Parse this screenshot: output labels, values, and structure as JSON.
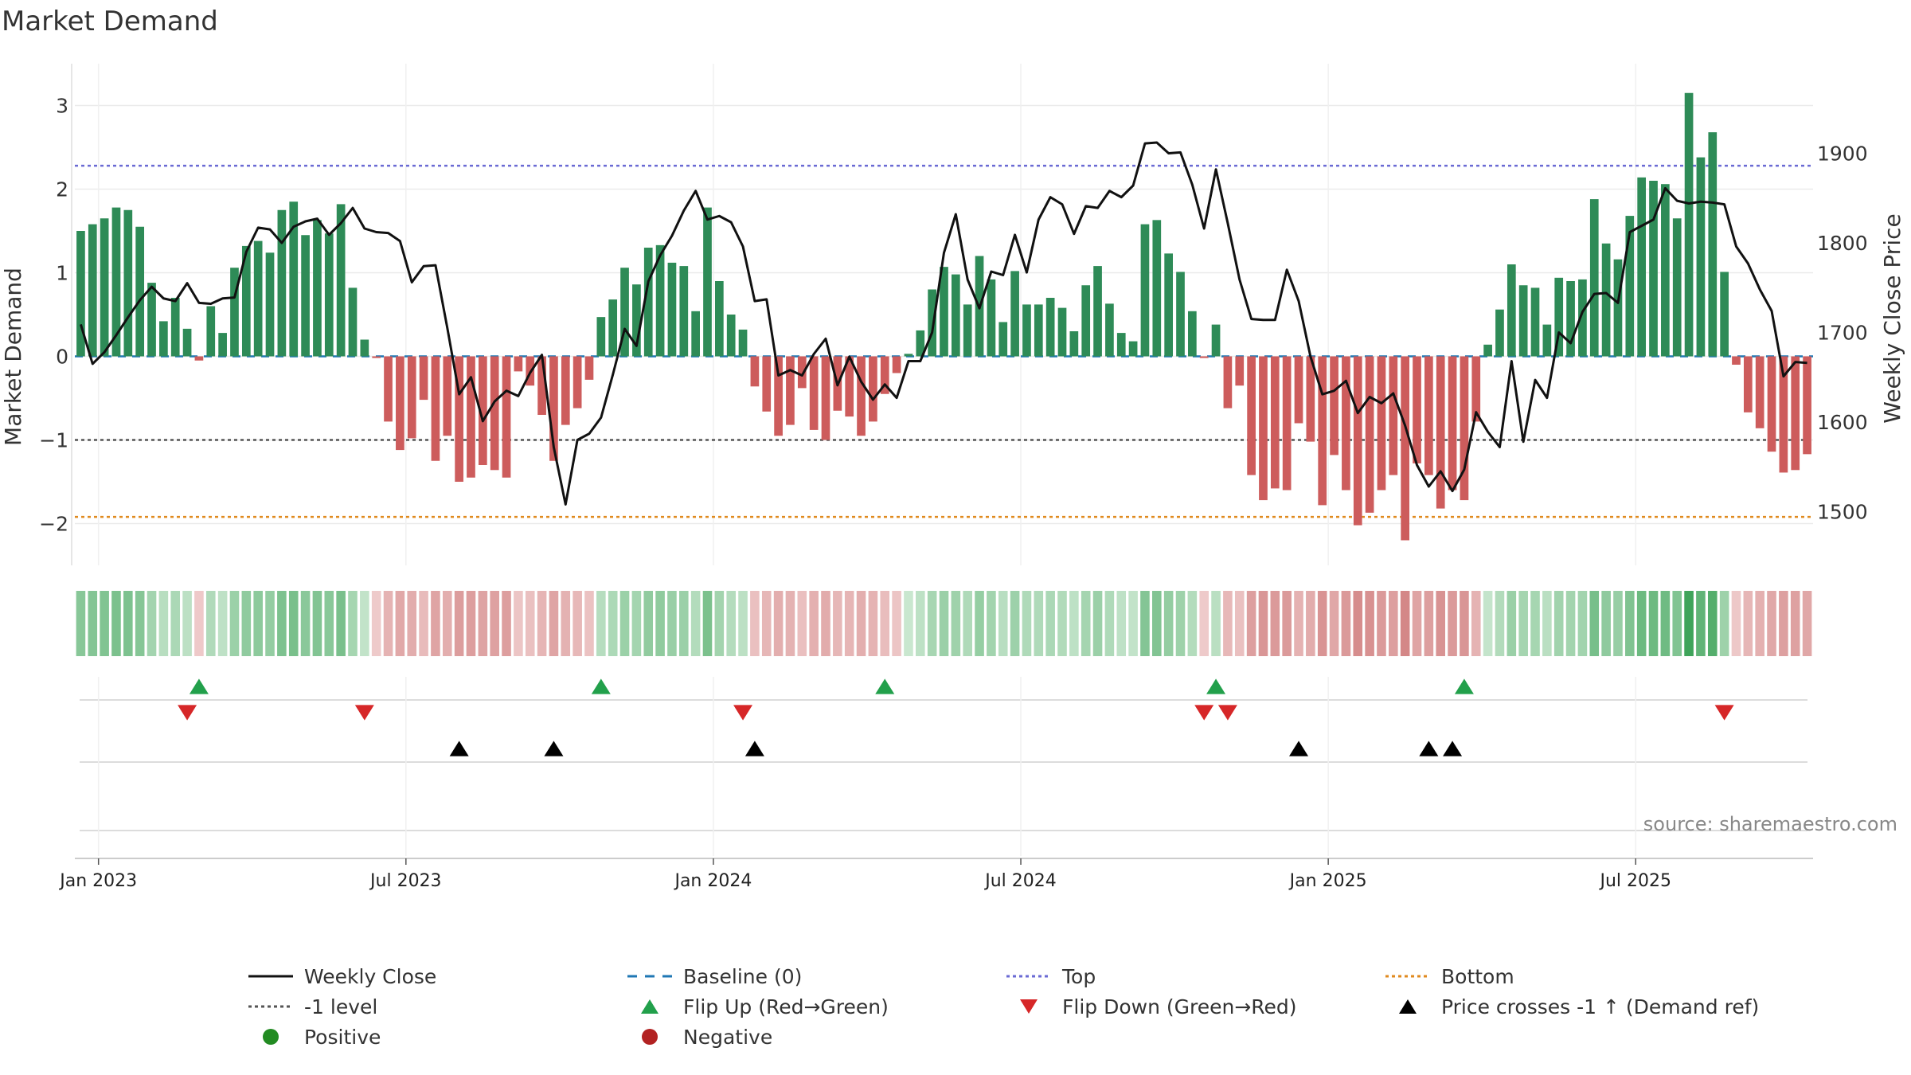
{
  "chart_data": {
    "type": "bar",
    "title": "Market Demand",
    "ylabel": "Market Demand",
    "y2label": "Weekly Close Price",
    "ylim": [
      -2.5,
      3.5
    ],
    "y2lim": [
      1440,
      2000
    ],
    "yticks": [
      -2,
      -1,
      0,
      1,
      2,
      3
    ],
    "y2ticks": [
      1500,
      1600,
      1700,
      1800,
      1900
    ],
    "xticks": [
      {
        "label": "Jan 2023",
        "index": 1.5
      },
      {
        "label": "Jul 2023",
        "index": 27.5
      },
      {
        "label": "Jan 2024",
        "index": 53.5
      },
      {
        "label": "Jul 2024",
        "index": 79.5
      },
      {
        "label": "Jan 2025",
        "index": 105.5
      },
      {
        "label": "Jul 2025",
        "index": 131.5
      }
    ],
    "reference_lines": {
      "top": 2.28,
      "bottom": -1.92,
      "minus_one": -1.0,
      "baseline": 0
    },
    "series": [
      {
        "name": "Market Demand",
        "values": [
          1.5,
          1.58,
          1.65,
          1.78,
          1.75,
          1.55,
          0.88,
          0.42,
          0.7,
          0.33,
          -0.05,
          0.6,
          0.28,
          1.06,
          1.32,
          1.38,
          1.24,
          1.75,
          1.85,
          1.45,
          1.63,
          1.47,
          1.82,
          0.82,
          0.2,
          -0.02,
          -0.78,
          -1.12,
          -0.98,
          -0.52,
          -1.25,
          -0.95,
          -1.5,
          -1.45,
          -1.3,
          -1.36,
          -1.45,
          -0.18,
          -0.35,
          -0.7,
          -1.25,
          -0.82,
          -0.62,
          -0.28,
          0.47,
          0.68,
          1.06,
          0.86,
          1.3,
          1.33,
          1.12,
          1.08,
          0.54,
          1.78,
          0.9,
          0.5,
          0.32,
          -0.36,
          -0.66,
          -0.95,
          -0.82,
          -0.38,
          -0.88,
          -1.0,
          -0.65,
          -0.72,
          -0.95,
          -0.78,
          -0.45,
          -0.2,
          0.03,
          0.31,
          0.8,
          1.07,
          0.98,
          0.62,
          1.2,
          0.92,
          0.41,
          1.02,
          0.62,
          0.62,
          0.7,
          0.58,
          0.3,
          0.85,
          1.08,
          0.63,
          0.28,
          0.18,
          1.58,
          1.63,
          1.23,
          1.01,
          0.54,
          -0.02,
          0.38,
          -0.62,
          -0.35,
          -1.42,
          -1.72,
          -1.58,
          -1.6,
          -0.8,
          -1.02,
          -1.78,
          -1.18,
          -1.6,
          -2.02,
          -1.87,
          -1.6,
          -1.42,
          -2.2,
          -1.28,
          -1.42,
          -1.82,
          -1.6,
          -1.72,
          -0.78,
          0.14,
          0.56,
          1.1,
          0.85,
          0.82,
          0.38,
          0.94,
          0.9,
          0.92,
          1.88,
          1.35,
          1.16,
          1.68,
          2.14,
          2.1,
          2.06,
          1.65,
          3.15,
          2.38,
          2.68,
          1.01,
          -0.1,
          -0.67,
          -0.86,
          -1.14,
          -1.39,
          -1.36,
          -1.17
        ]
      },
      {
        "name": "Weekly Close",
        "values": [
          1709,
          1665,
          1678,
          1697,
          1717,
          1736,
          1751,
          1738,
          1735,
          1755,
          1733,
          1732,
          1738,
          1739,
          1790,
          1817,
          1815,
          1800,
          1818,
          1824,
          1827,
          1809,
          1822,
          1839,
          1816,
          1812,
          1811,
          1802,
          1756,
          1774,
          1775,
          1705,
          1631,
          1650,
          1601,
          1623,
          1635,
          1629,
          1655,
          1675,
          1572,
          1508,
          1580,
          1587,
          1605,
          1653,
          1704,
          1685,
          1757,
          1786,
          1808,
          1836,
          1858,
          1826,
          1830,
          1823,
          1796,
          1735,
          1737,
          1652,
          1658,
          1652,
          1676,
          1693,
          1641,
          1673,
          1645,
          1625,
          1642,
          1627,
          1668,
          1668,
          1700,
          1789,
          1832,
          1759,
          1727,
          1768,
          1764,
          1809,
          1767,
          1826,
          1851,
          1843,
          1810,
          1841,
          1839,
          1858,
          1851,
          1864,
          1911,
          1912,
          1900,
          1901,
          1865,
          1816,
          1882,
          1822,
          1759,
          1715,
          1714,
          1714,
          1770,
          1735,
          1673,
          1631,
          1635,
          1646,
          1610,
          1628,
          1621,
          1632,
          1596,
          1552,
          1528,
          1545,
          1523,
          1547,
          1611,
          1589,
          1572,
          1668,
          1578,
          1647,
          1627,
          1700,
          1688,
          1723,
          1743,
          1744,
          1733,
          1812,
          1819,
          1826,
          1861,
          1847,
          1844,
          1846,
          1845,
          1843,
          1796,
          1777,
          1748,
          1724,
          1651,
          1667,
          1666
        ]
      }
    ],
    "strip_legend": {
      "positive": "Positive",
      "negative": "Negative"
    },
    "flip_up_idx": [
      10,
      44,
      68,
      96,
      117
    ],
    "flip_down_idx": [
      9,
      24,
      56,
      95,
      97,
      139
    ],
    "cross_idx": [
      32,
      40,
      57,
      103,
      114,
      116
    ],
    "source": "source: sharemaestro.com",
    "legend": [
      {
        "label": "Weekly Close",
        "kind": "line-black"
      },
      {
        "label": "Baseline (0)",
        "kind": "dash-blue"
      },
      {
        "label": "Top",
        "kind": "dot-purple"
      },
      {
        "label": "Bottom",
        "kind": "dot-orange"
      },
      {
        "label": "-1 level",
        "kind": "dot-gray"
      },
      {
        "label": "Flip Up (Red→Green)",
        "kind": "tri-up-green"
      },
      {
        "label": "Flip Down (Green→Red)",
        "kind": "tri-down-red"
      },
      {
        "label": "Price crosses -1 ↑ (Demand ref)",
        "kind": "tri-up-black"
      },
      {
        "label": "Positive",
        "kind": "dot-green"
      },
      {
        "label": "Negative",
        "kind": "dot-red"
      }
    ],
    "colors": {
      "positive": "#2e8b57",
      "negative": "#cd5c5c",
      "price": "#111111",
      "baseline": "#1f77b4",
      "top": "#6a6ad4",
      "bottom": "#e08a1e",
      "minus_one": "#555555",
      "flip_up": "#22a04b",
      "flip_down": "#d62728",
      "cross": "#000000",
      "dot_pos": "#228b22",
      "dot_neg": "#b22222"
    }
  }
}
